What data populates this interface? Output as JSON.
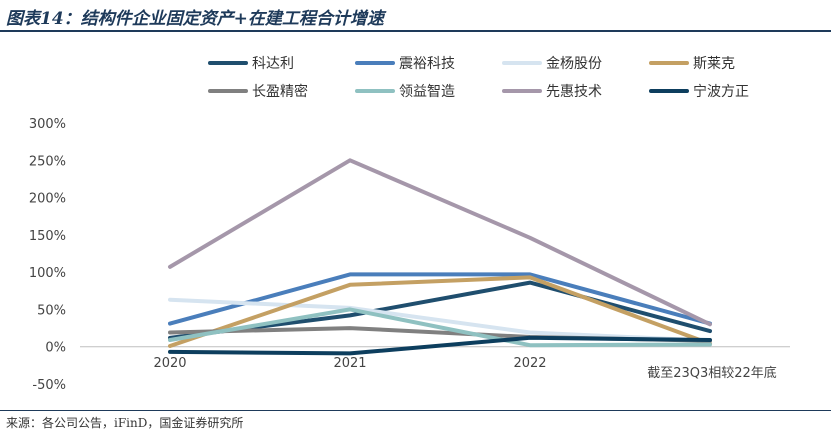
{
  "header": {
    "title": "图表14：结构件企业固定资产+在建工程合计增速"
  },
  "footer": {
    "source": "来源：各公司公告，iFinD，国金证券研究所"
  },
  "chart_data": {
    "type": "line",
    "title": "",
    "xlabel": "",
    "ylabel": "",
    "categories": [
      "2020",
      "2021",
      "2022",
      "截至23Q3相较22年底"
    ],
    "y_ticks": [
      "300%",
      "250%",
      "200%",
      "150%",
      "100%",
      "50%",
      "0%",
      "-50%"
    ],
    "ylim": [
      -50,
      300
    ],
    "grid": false,
    "legend_position": "top",
    "series": [
      {
        "name": "科达利",
        "color": "#1f4e6e",
        "values": [
          12,
          42,
          86,
          21
        ]
      },
      {
        "name": "震裕科技",
        "color": "#4a7ebb",
        "values": [
          31,
          97,
          97,
          31
        ]
      },
      {
        "name": "金杨股份",
        "color": "#d6e4f0",
        "values": [
          63,
          52,
          19,
          8
        ]
      },
      {
        "name": "斯莱克",
        "color": "#c4a063",
        "values": [
          1,
          83,
          93,
          4
        ]
      },
      {
        "name": "长盈精密",
        "color": "#808080",
        "values": [
          19,
          25,
          13,
          8
        ]
      },
      {
        "name": "领益智造",
        "color": "#8fc1c1",
        "values": [
          9,
          50,
          2,
          3
        ]
      },
      {
        "name": "先惠技术",
        "color": "#a597aa",
        "values": [
          107,
          250,
          146,
          30
        ]
      },
      {
        "name": "宁波方正",
        "color": "#0d3e5e",
        "values": [
          -7,
          -9,
          12,
          9
        ]
      }
    ]
  }
}
